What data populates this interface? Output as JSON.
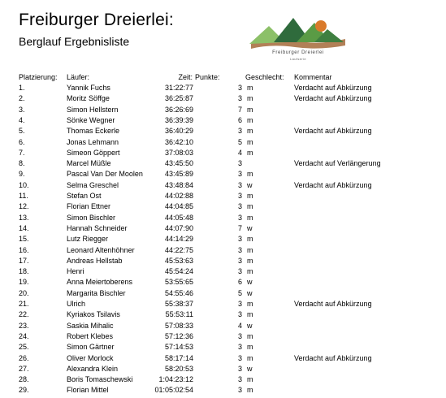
{
  "header": {
    "title": "Freiburger Dreierlei:",
    "subtitle": "Berglauf Ergebnisliste"
  },
  "logo": {
    "text": "Freiburger Dreierlei",
    "subtext": "Laufserie",
    "colors": {
      "mountain_dark": "#2f6b3c",
      "mountain_mid": "#5a9b45",
      "mountain_light": "#8cc068",
      "sun": "#d97a2a",
      "ground": "#a56a3a"
    }
  },
  "columns": {
    "place": "Platzierung:",
    "runner": "Läufer:",
    "time": "Zeit:",
    "points": "Punkte:",
    "gender": "Geschlecht:",
    "comment": "Kommentar"
  },
  "rows": [
    {
      "place": "1.",
      "runner": "Yannik Fuchs",
      "time": "31:22:77",
      "points": "3",
      "gender": "m",
      "comment": "Verdacht auf Abkürzung"
    },
    {
      "place": "2.",
      "runner": "Moritz Söffge",
      "time": "36:25:87",
      "points": "3",
      "gender": "m",
      "comment": "Verdacht auf Abkürzung"
    },
    {
      "place": "3.",
      "runner": "Simon Hellstern",
      "time": "36:26:69",
      "points": "7",
      "gender": "m",
      "comment": ""
    },
    {
      "place": "4.",
      "runner": "Sönke Wegner",
      "time": "36:39:39",
      "points": "6",
      "gender": "m",
      "comment": ""
    },
    {
      "place": "5.",
      "runner": "Thomas Eckerle",
      "time": "36:40:29",
      "points": "3",
      "gender": "m",
      "comment": "Verdacht auf Abkürzung"
    },
    {
      "place": "6.",
      "runner": "Jonas Lehmann",
      "time": "36:42:10",
      "points": "5",
      "gender": "m",
      "comment": ""
    },
    {
      "place": "7.",
      "runner": "Simeon Göppert",
      "time": "37:08:03",
      "points": "4",
      "gender": "m",
      "comment": ""
    },
    {
      "place": "8.",
      "runner": "Marcel Müßle",
      "time": "43:45:50",
      "points": "3",
      "gender": "",
      "comment": "Verdacht auf Verlängerung"
    },
    {
      "place": "9.",
      "runner": "Pascal Van Der Moolen",
      "time": "43:45:89",
      "points": "3",
      "gender": "m",
      "comment": ""
    },
    {
      "place": "10.",
      "runner": "Selma Greschel",
      "time": "43:48:84",
      "points": "3",
      "gender": "w",
      "comment": "Verdacht auf Abkürzung"
    },
    {
      "place": "11.",
      "runner": "Stefan Ost",
      "time": "44:02:88",
      "points": "3",
      "gender": "m",
      "comment": ""
    },
    {
      "place": "12.",
      "runner": "Florian Ettner",
      "time": "44:04:85",
      "points": "3",
      "gender": "m",
      "comment": ""
    },
    {
      "place": "13.",
      "runner": "Simon Bischler",
      "time": "44:05:48",
      "points": "3",
      "gender": "m",
      "comment": ""
    },
    {
      "place": "14.",
      "runner": "Hannah Schneider",
      "time": "44:07:90",
      "points": "7",
      "gender": "w",
      "comment": ""
    },
    {
      "place": "15.",
      "runner": "Lutz Riegger",
      "time": "44:14:29",
      "points": "3",
      "gender": "m",
      "comment": ""
    },
    {
      "place": "16.",
      "runner": "Leonard Altenhöhner",
      "time": "44:22:75",
      "points": "3",
      "gender": "m",
      "comment": ""
    },
    {
      "place": "17.",
      "runner": "Andreas Hellstab",
      "time": "45:53:63",
      "points": "3",
      "gender": "m",
      "comment": ""
    },
    {
      "place": "18.",
      "runner": "Henri",
      "time": "45:54:24",
      "points": "3",
      "gender": "m",
      "comment": ""
    },
    {
      "place": "19.",
      "runner": "Anna Meiertoberens",
      "time": "53:55:65",
      "points": "6",
      "gender": "w",
      "comment": ""
    },
    {
      "place": "20.",
      "runner": "Margarita Bischler",
      "time": "54:55:46",
      "points": "5",
      "gender": "w",
      "comment": ""
    },
    {
      "place": "21.",
      "runner": "Ulrich",
      "time": "55:38:37",
      "points": "3",
      "gender": "m",
      "comment": "Verdacht auf Abkürzung"
    },
    {
      "place": "22.",
      "runner": "Kyriakos Tsilavis",
      "time": "55:53:11",
      "points": "3",
      "gender": "m",
      "comment": ""
    },
    {
      "place": "23.",
      "runner": "Saskia Mihalic",
      "time": "57:08:33",
      "points": "4",
      "gender": "w",
      "comment": ""
    },
    {
      "place": "24.",
      "runner": "Robert Klebes",
      "time": "57:12:36",
      "points": "3",
      "gender": "m",
      "comment": ""
    },
    {
      "place": "25.",
      "runner": "Simon Gärtner",
      "time": "57:14:53",
      "points": "3",
      "gender": "m",
      "comment": ""
    },
    {
      "place": "26.",
      "runner": "Oliver Morlock",
      "time": "58:17:14",
      "points": "3",
      "gender": "m",
      "comment": "Verdacht auf Abkürzung"
    },
    {
      "place": "27.",
      "runner": "Alexandra Klein",
      "time": "58:20:53",
      "points": "3",
      "gender": "w",
      "comment": ""
    },
    {
      "place": "28.",
      "runner": "Boris Tomaschewski",
      "time": "1:04:23:12",
      "points": "3",
      "gender": "m",
      "comment": ""
    },
    {
      "place": "29.",
      "runner": "Florian Mittel",
      "time": "01:05:02:54",
      "points": "3",
      "gender": "m",
      "comment": ""
    }
  ]
}
